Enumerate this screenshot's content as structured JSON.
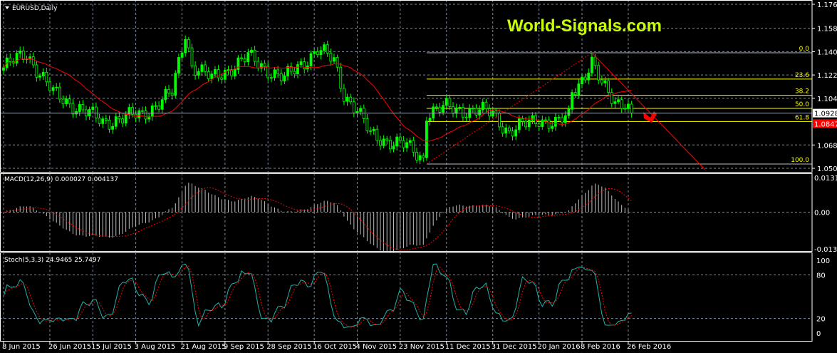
{
  "chart_data": {
    "type": "candlestick",
    "title": "EURUSD,Daily",
    "watermark": "World-Signals.com",
    "symbol": "EURUSD",
    "timeframe": "Daily",
    "colors": {
      "background": "#000000",
      "candle": "#00ff00",
      "ma": "#ff0000",
      "grid": "#7f8a99",
      "fib": "#ffff00",
      "bid_line": "#a0a8b0",
      "ask_label": "#ff0000",
      "macd_hist": "#c0c0c0",
      "stoch_main": "#20b2aa",
      "stoch_signal": "#ff0000",
      "watermark": "#c8ff00"
    },
    "price_axis": {
      "ylim": [
        1.0503,
        1.1768
      ],
      "ticks": [
        "1.17680",
        "1.15830",
        "1.14030",
        "1.12230",
        "1.10430",
        "1.06830",
        "1.05030"
      ]
    },
    "current_price": "1.09286",
    "ask_price": "1.08476",
    "closes": [
      [
        "2015-06-08",
        1.1279
      ],
      [
        "2015-06-17",
        1.139
      ],
      [
        "2015-06-29",
        1.108
      ],
      [
        "2015-07-20",
        1.086
      ],
      [
        "2015-08-05",
        1.092
      ],
      [
        "2015-08-18",
        1.108
      ],
      [
        "2015-08-24",
        1.155
      ],
      [
        "2015-08-26",
        1.13
      ],
      [
        "2015-09-03",
        1.119
      ],
      [
        "2015-09-18",
        1.136
      ],
      [
        "2015-10-05",
        1.119
      ],
      [
        "2015-10-19",
        1.142
      ],
      [
        "2015-10-26",
        1.133
      ],
      [
        "2015-10-29",
        1.108
      ],
      [
        "2015-11-04",
        1.095
      ],
      [
        "2015-11-10",
        1.076
      ],
      [
        "2015-11-17",
        1.072
      ],
      [
        "2015-11-25",
        1.067
      ],
      [
        "2015-12-02",
        1.058
      ],
      [
        "2015-12-03",
        1.093
      ],
      [
        "2015-12-11",
        1.097
      ],
      [
        "2015-12-31",
        1.093
      ],
      [
        "2016-01-07",
        1.078
      ],
      [
        "2016-01-20",
        1.089
      ],
      [
        "2016-01-27",
        1.084
      ],
      [
        "2016-02-02",
        1.09
      ],
      [
        "2016-02-03",
        1.11
      ],
      [
        "2016-02-05",
        1.116
      ],
      [
        "2016-02-11",
        1.132
      ],
      [
        "2016-02-16",
        1.114
      ],
      [
        "2016-02-22",
        1.102
      ],
      [
        "2016-02-25",
        1.102
      ],
      [
        "2016-02-29",
        1.0929
      ]
    ],
    "fibonacci": {
      "high": 1.1394,
      "low": 1.0536,
      "levels": [
        "0.0",
        "23.6",
        "38.2",
        "50.0",
        "61.8",
        "100.0"
      ]
    },
    "macd": {
      "label": "MACD(12,26,9) 0.000027 0.004137",
      "ylim": [
        -0.013928,
        0.013135
      ],
      "ticks": [
        "0.013135",
        "0.00",
        "-0.013928"
      ]
    },
    "stoch": {
      "label": "Stoch(5,3,3) 24.9465 25.7497",
      "ylim": [
        0,
        100
      ],
      "ticks": [
        "100",
        "80",
        "20",
        "0"
      ]
    },
    "x_ticks": [
      "8 Jun 2015",
      "26 Jun 2015",
      "15 Jul 2015",
      "3 Aug 2015",
      "21 Aug 2015",
      "9 Sep 2015",
      "28 Sep 2015",
      "16 Oct 2015",
      "4 Nov 2015",
      "23 Nov 2015",
      "11 Dec 2015",
      "31 Dec 2015",
      "20 Jan 2016",
      "8 Feb 2016",
      "26 Feb 2016"
    ],
    "x_tick_dates": [
      "2015-06-08",
      "2015-06-26",
      "2015-07-15",
      "2015-08-03",
      "2015-08-21",
      "2015-09-09",
      "2015-09-28",
      "2015-10-16",
      "2015-11-04",
      "2015-11-23",
      "2015-12-11",
      "2015-12-31",
      "2016-01-20",
      "2016-02-08",
      "2016-02-26"
    ]
  }
}
